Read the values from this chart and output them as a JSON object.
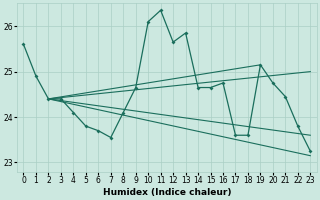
{
  "xlabel": "Humidex (Indice chaleur)",
  "bg_color": "#cce8e0",
  "line_color": "#1a6e5c",
  "grid_color": "#aacfc5",
  "xlim": [
    -0.5,
    23.5
  ],
  "ylim": [
    22.8,
    26.5
  ],
  "yticks": [
    23,
    24,
    25,
    26
  ],
  "xticks": [
    0,
    1,
    2,
    3,
    4,
    5,
    6,
    7,
    8,
    9,
    10,
    11,
    12,
    13,
    14,
    15,
    16,
    17,
    18,
    19,
    20,
    21,
    22,
    23
  ],
  "main_line": [
    25.6,
    24.9,
    24.4,
    24.4,
    24.1,
    23.8,
    23.7,
    23.55,
    24.1,
    24.65,
    26.1,
    26.35,
    25.65,
    25.85,
    24.65,
    24.65,
    24.75,
    23.6,
    23.6,
    25.15,
    24.75,
    24.45,
    23.8,
    23.25
  ],
  "line_fan": [
    [
      [
        2,
        24.4
      ],
      [
        19,
        25.15
      ]
    ],
    [
      [
        2,
        24.4
      ],
      [
        23,
        25.0
      ]
    ],
    [
      [
        2,
        24.4
      ],
      [
        23,
        23.6
      ]
    ],
    [
      [
        2,
        24.4
      ],
      [
        23,
        23.15
      ]
    ]
  ]
}
